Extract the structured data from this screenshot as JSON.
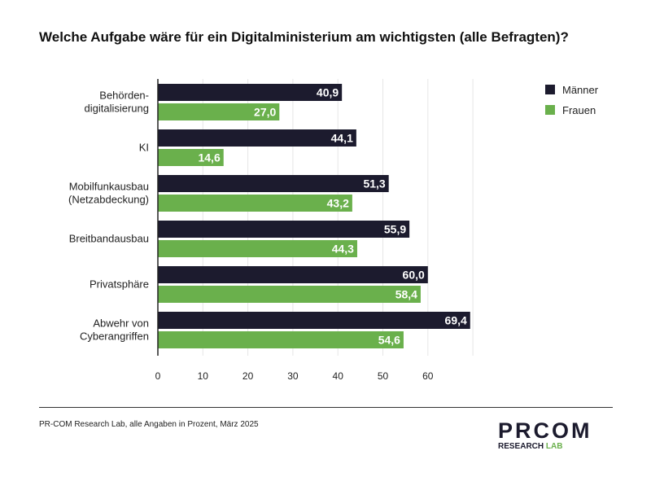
{
  "title": "Welche Aufgabe wäre für ein Digitalministerium am wichtigsten (alle Befragten)?",
  "source": "PR-COM Research Lab, alle Angaben in Prozent, März 2025",
  "logo": {
    "main": "PRCOM",
    "sub_a": "RESEARCH",
    "sub_b": "LAB"
  },
  "chart_data": {
    "type": "bar",
    "orientation": "horizontal",
    "categories": [
      [
        "Behörden-",
        "digitalisierung"
      ],
      [
        "KI"
      ],
      [
        "Mobilfunkausbau",
        "(Netzabdeckung)"
      ],
      [
        "Breitbandausbau"
      ],
      [
        "Privatsphäre"
      ],
      [
        "Abwehr von",
        "Cyberangriffen"
      ]
    ],
    "series": [
      {
        "name": "Männer",
        "color": "#1c1b2e",
        "values": [
          40.9,
          44.1,
          51.3,
          55.9,
          60.0,
          69.4
        ],
        "labels": [
          "40,9",
          "44,1",
          "51,3",
          "55,9",
          "60,0",
          "69,4"
        ]
      },
      {
        "name": "Frauen",
        "color": "#6ab04c",
        "values": [
          27.0,
          14.6,
          43.2,
          44.3,
          58.4,
          54.6
        ],
        "labels": [
          "27,0",
          "14,6",
          "43,2",
          "44,3",
          "58,4",
          "54,6"
        ]
      }
    ],
    "xticks": [
      "0",
      "10",
      "20",
      "30",
      "40",
      "50",
      "60"
    ],
    "xlim": [
      0,
      70
    ],
    "grid": true,
    "legend": "top-right"
  }
}
